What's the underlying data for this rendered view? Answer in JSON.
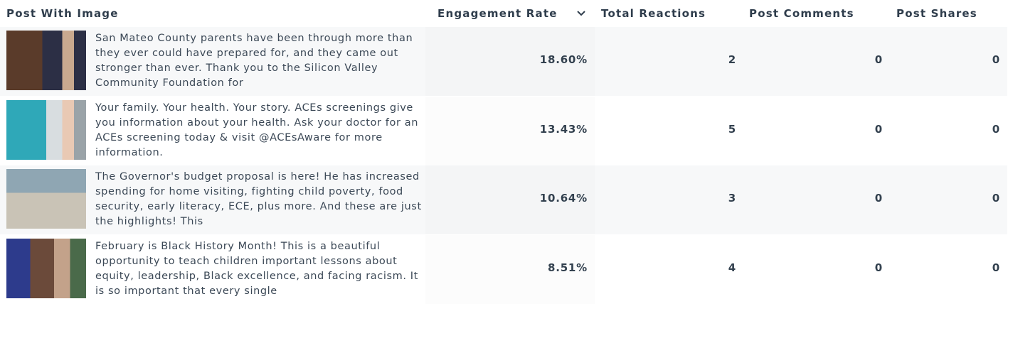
{
  "table": {
    "header": [
      "Post With Image",
      "Engagement Rate",
      "Total Reactions",
      "Post Comments",
      "Post Shares"
    ],
    "rows": [
      [
        "San Mateo County parents have been through more than they ever could have prepared for, and they came out stronger than ever. Thank you to the Silicon Valley Community Foundation for",
        "18.60%",
        "2",
        "0",
        "0"
      ],
      [
        "Your family. Your health. Your story. ACEs screenings give you information about your health. Ask your doctor for an ACEs screening today & visit @ACEsAware for more information.",
        "13.43%",
        "5",
        "0",
        "0"
      ],
      [
        "The Governor's budget proposal is here! He has increased spending for home visiting, fighting child poverty, food security, early literacy, ECE, plus more. And these are just the highlights! This",
        "10.64%",
        "3",
        "0",
        "0"
      ],
      [
        "February is Black History Month! This is a beautiful opportunity to teach children important lessons about equity, leadership, Black excellence, and facing racism. It is so important that every single",
        "8.51%",
        "4",
        "0",
        "0"
      ]
    ]
  }
}
